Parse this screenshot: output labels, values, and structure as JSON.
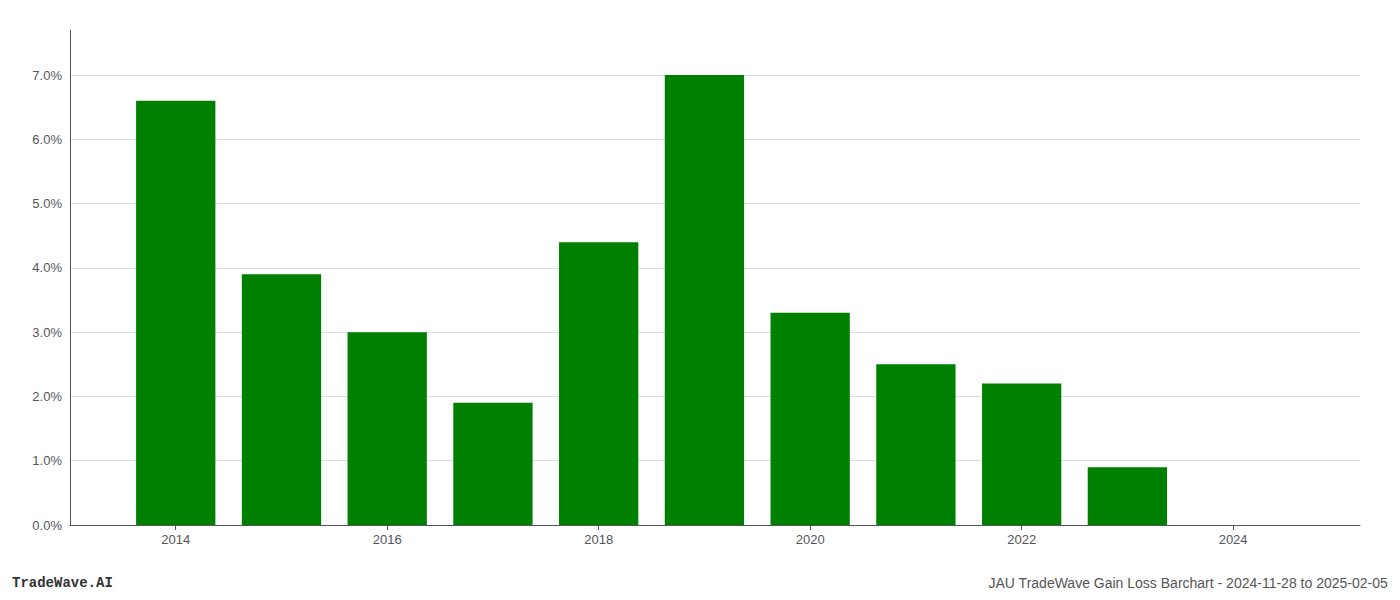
{
  "chart_data": {
    "type": "bar",
    "x": [
      2014,
      2015,
      2016,
      2017,
      2018,
      2019,
      2020,
      2021,
      2022,
      2023,
      2024
    ],
    "values": [
      0.066,
      0.039,
      0.03,
      0.019,
      0.044,
      0.07,
      0.033,
      0.025,
      0.022,
      0.009,
      0.0
    ],
    "color": "#008000",
    "xlim": [
      2013.0,
      2025.2
    ],
    "xticks": [
      2014,
      2016,
      2018,
      2020,
      2022,
      2024
    ],
    "ylim": [
      0,
      0.077
    ],
    "yticks": [
      {
        "value": 0.0,
        "label": "0.0%"
      },
      {
        "value": 0.01,
        "label": "1.0%"
      },
      {
        "value": 0.02,
        "label": "2.0%"
      },
      {
        "value": 0.03,
        "label": "3.0%"
      },
      {
        "value": 0.04,
        "label": "4.0%"
      },
      {
        "value": 0.05,
        "label": "5.0%"
      },
      {
        "value": 0.06,
        "label": "6.0%"
      },
      {
        "value": 0.07,
        "label": "7.0%"
      }
    ],
    "grid": true,
    "annotations": [
      "TradeWave.AI",
      "JAU TradeWave Gain Loss Barchart - 2024-11-28 to 2025-02-05"
    ]
  }
}
